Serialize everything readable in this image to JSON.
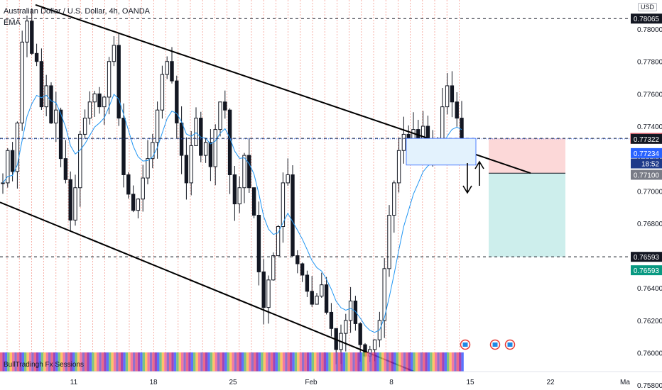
{
  "legend": {
    "symbol": "Australian Dollar / U.S. Dollar, 4h, OANDA",
    "indicator": "EMA",
    "sessions": "BullTradingh Fx Sessions"
  },
  "currency": "USD",
  "chart_data": {
    "type": "candlestick",
    "y_range": [
      0.7577,
      0.7818
    ],
    "y_ticks": [
      0.78,
      0.778,
      0.776,
      0.774,
      0.772,
      0.77,
      0.768,
      0.766,
      0.764,
      0.762,
      0.76,
      0.758
    ],
    "y_tick_labels": [
      "0.78000",
      "0.77800",
      "0.77600",
      "0.77400",
      "0.77200",
      "0.77000",
      "0.76800",
      "0.76600",
      "0.76400",
      "0.76200",
      "0.76000",
      "0.75800"
    ],
    "x_tick_labels": [
      "11",
      "18",
      "25",
      "Feb",
      "8",
      "15",
      "22",
      "Ma"
    ],
    "price_badges": [
      {
        "label": "0.78065",
        "value": 0.78065,
        "style": "dark"
      },
      {
        "label": "0.77325",
        "value": 0.77325,
        "style": "red-outline"
      },
      {
        "label": "0.77322",
        "value": 0.77322,
        "style": "dark"
      },
      {
        "label": "0.77234",
        "value": 0.77234,
        "style": "blue"
      },
      {
        "label": "18:52",
        "value": 0.7717,
        "style": "navy"
      },
      {
        "label": "0.77100",
        "value": 0.771,
        "style": "gray"
      },
      {
        "label": "0.76593",
        "value": 0.76593,
        "style": "dark"
      },
      {
        "label": "0.76593",
        "value": 0.7651,
        "style": "green"
      }
    ],
    "horizontal_levels": [
      0.78065,
      0.77325,
      0.76593
    ],
    "current_price": 0.77322,
    "position": {
      "entry": 0.7711,
      "stop": 0.77325,
      "target": 0.76593
    },
    "channel": {
      "upper": [
        {
          "date": "Jan 8",
          "price": 0.7815
        },
        {
          "date": "Feb 17",
          "price": 0.7711
        }
      ],
      "lower": [
        {
          "date": "Jan 8",
          "price": 0.7699
        },
        {
          "date": "Feb 10",
          "price": 0.758
        }
      ]
    },
    "ohlc_path": [
      0.7705,
      0.7725,
      0.7712,
      0.7742,
      0.7792,
      0.7805,
      0.7785,
      0.778,
      0.7752,
      0.7765,
      0.7742,
      0.775,
      0.772,
      0.7707,
      0.7682,
      0.7702,
      0.7735,
      0.7745,
      0.7755,
      0.776,
      0.7752,
      0.7758,
      0.778,
      0.779,
      0.7745,
      0.771,
      0.7698,
      0.7688,
      0.7695,
      0.7708,
      0.772,
      0.773,
      0.775,
      0.7772,
      0.778,
      0.7768,
      0.7742,
      0.7722,
      0.7705,
      0.7728,
      0.7745,
      0.7722,
      0.773,
      0.7715,
      0.7738,
      0.7755,
      0.775,
      0.771,
      0.7692,
      0.7702,
      0.7722,
      0.7702,
      0.7685,
      0.765,
      0.7628,
      0.7645,
      0.766,
      0.7678,
      0.7705,
      0.771,
      0.766,
      0.7655,
      0.7648,
      0.7638,
      0.763,
      0.7635,
      0.7642,
      0.7625,
      0.7615,
      0.7602,
      0.7612,
      0.762,
      0.7632,
      0.7618,
      0.7605,
      0.7598,
      0.7602,
      0.7608,
      0.762,
      0.7652,
      0.7685,
      0.7705,
      0.7725,
      0.7735,
      0.7728,
      0.7738,
      0.7732,
      0.774,
      0.773,
      0.7725,
      0.7728,
      0.7752,
      0.7765,
      0.7755,
      0.7745,
      0.7732
    ]
  }
}
